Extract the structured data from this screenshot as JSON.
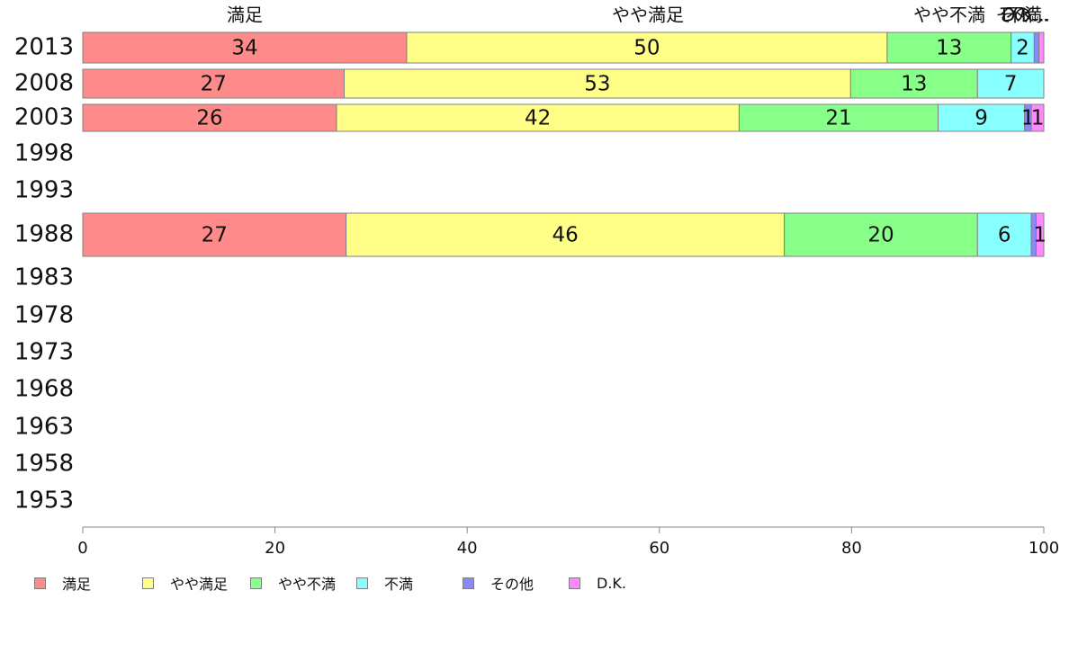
{
  "chart_data": {
    "type": "bar",
    "orientation": "horizontal",
    "stacked": true,
    "categories": [
      "2013",
      "2008",
      "2003",
      "1998",
      "1993",
      "1988",
      "1983",
      "1978",
      "1973",
      "1968",
      "1963",
      "1958",
      "1953"
    ],
    "series": [
      {
        "name": "満足",
        "top_label": "満足",
        "color": "#ff8a8a",
        "values": [
          33.7,
          27.2,
          26.4,
          null,
          null,
          27.4,
          null,
          null,
          null,
          null,
          null,
          null,
          null
        ],
        "labels": [
          "34",
          "27",
          "26",
          "",
          "",
          "27",
          "",
          "",
          "",
          "",
          "",
          "",
          ""
        ]
      },
      {
        "name": "やや満足",
        "top_label": "やや満足",
        "color": "#ffff88",
        "values": [
          50.0,
          52.7,
          41.9,
          null,
          null,
          45.6,
          null,
          null,
          null,
          null,
          null,
          null,
          null
        ],
        "labels": [
          "50",
          "53",
          "42",
          "",
          "",
          "46",
          "",
          "",
          "",
          "",
          "",
          "",
          ""
        ]
      },
      {
        "name": "やや不満",
        "top_label": "やや不満",
        "color": "#88ff88",
        "values": [
          12.9,
          13.2,
          20.7,
          null,
          null,
          20.1,
          null,
          null,
          null,
          null,
          null,
          null,
          null
        ],
        "labels": [
          "13",
          "13",
          "21",
          "",
          "",
          "20",
          "",
          "",
          "",
          "",
          "",
          "",
          ""
        ]
      },
      {
        "name": "不満",
        "top_label": "不満",
        "color": "#88ffff",
        "values": [
          2.4,
          6.9,
          9.0,
          null,
          null,
          5.6,
          null,
          null,
          null,
          null,
          null,
          null,
          null
        ],
        "labels": [
          "2",
          "7",
          "9",
          "",
          "",
          "6",
          "",
          "",
          "",
          "",
          "",
          "",
          ""
        ]
      },
      {
        "name": "その他",
        "top_label": "その...",
        "color": "#8888ff",
        "values": [
          0.5,
          0.0,
          0.7,
          null,
          null,
          0.5,
          null,
          null,
          null,
          null,
          null,
          null,
          null
        ],
        "labels": [
          "",
          "",
          "1",
          "",
          "",
          "",
          "",
          "",
          "",
          "",
          "",
          "",
          ""
        ]
      },
      {
        "name": "D.K.",
        "top_label": "D.K...",
        "color": "#ff88ff",
        "values": [
          0.5,
          0.0,
          1.3,
          null,
          null,
          0.8,
          null,
          null,
          null,
          null,
          null,
          null,
          null
        ],
        "labels": [
          "",
          "",
          "1",
          "",
          "",
          "1",
          "",
          "",
          "",
          "",
          "",
          "",
          ""
        ]
      }
    ],
    "xlim": [
      0,
      100
    ],
    "xticks": [
      0,
      20,
      40,
      60,
      80,
      100
    ],
    "grid": false,
    "legend": "bottom",
    "legend_visible_rows": true
  }
}
